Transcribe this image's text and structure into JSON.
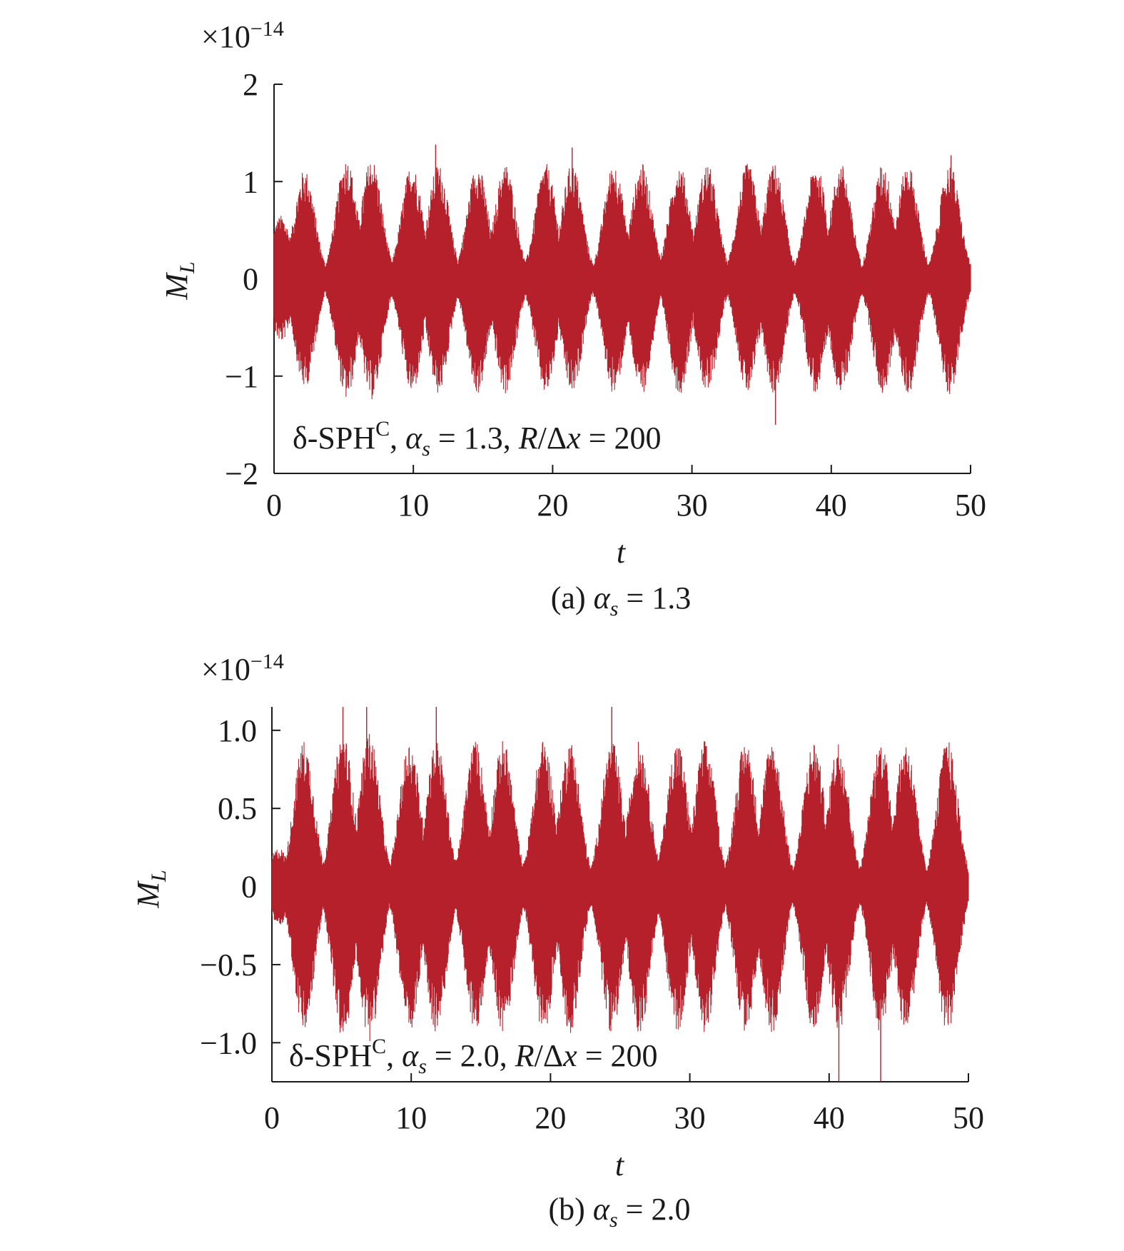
{
  "colors": {
    "series": "#b5202a",
    "axis": "#1a1a1a"
  },
  "chart_data": [
    {
      "type": "line",
      "caption": {
        "prefix": "(a) ",
        "symbol": "α",
        "sub": "s",
        "rest": " = 1.3"
      },
      "scale_note": {
        "base": "×10",
        "exp": "−14"
      },
      "xlabel": "t",
      "ylabel": {
        "main": "M",
        "sub": "L"
      },
      "xlim": [
        0,
        50
      ],
      "ylim": [
        -2,
        2
      ],
      "xticks": [
        0,
        10,
        20,
        30,
        40,
        50
      ],
      "xtick_labels": [
        "0",
        "10",
        "20",
        "30",
        "40",
        "50"
      ],
      "yticks": [
        -2,
        -1,
        0,
        1,
        2
      ],
      "ytick_labels": [
        "−2",
        "−1",
        "0",
        "1",
        "2"
      ],
      "annotation": {
        "text1": "δ-SPH",
        "sup": "C",
        "text2": ", ",
        "sym": "α",
        "sub": "s",
        "text3": " = 1.3, ",
        "r": "R",
        "text4": "/Δ",
        "x": "x",
        "text5": " = 200"
      },
      "grid": false,
      "series": [
        {
          "envelope_peaks_t": [
            0.5,
            2.2,
            5.2,
            7.0,
            9.9,
            11.8,
            14.6,
            16.6,
            19.5,
            21.4,
            24.4,
            26.4,
            29.1,
            31.1,
            34.0,
            35.9,
            38.9,
            40.7,
            43.7,
            45.5,
            48.5
          ],
          "envelope_peak_amp": [
            0.55,
            0.95,
            1.05,
            1.05,
            1.0,
            1.0,
            1.0,
            1.0,
            1.0,
            1.0,
            1.0,
            1.0,
            1.0,
            1.0,
            1.0,
            1.0,
            1.0,
            1.0,
            1.0,
            1.0,
            1.0
          ],
          "spike_t": [
            11.6,
            21.4,
            36.0,
            48.6
          ],
          "spike_y": [
            1.38,
            1.35,
            -1.5,
            1.27
          ],
          "amplitude_range": [
            -1.5,
            1.38
          ]
        }
      ]
    },
    {
      "type": "line",
      "caption": {
        "prefix": "(b) ",
        "symbol": "α",
        "sub": "s",
        "rest": " = 2.0"
      },
      "scale_note": {
        "base": "×10",
        "exp": "−14"
      },
      "xlabel": "t",
      "ylabel": {
        "main": "M",
        "sub": "L"
      },
      "xlim": [
        0,
        50
      ],
      "ylim": [
        -1.25,
        1.15
      ],
      "xticks": [
        0,
        10,
        20,
        30,
        40,
        50
      ],
      "xtick_labels": [
        "0",
        "10",
        "20",
        "30",
        "40",
        "50"
      ],
      "yticks": [
        -1.0,
        -0.5,
        0,
        0.5,
        1.0
      ],
      "ytick_labels": [
        "−1.0",
        "−0.5",
        "0",
        "0.5",
        "1.0"
      ],
      "annotation": {
        "text1": "δ-SPH",
        "sup": "C",
        "text2": ", ",
        "sym": "α",
        "sub": "s",
        "text3": " = 2.0, ",
        "r": "R",
        "text4": "/Δ",
        "x": "x",
        "text5": " = 200"
      },
      "grid": false,
      "series": [
        {
          "envelope_peaks_t": [
            0.5,
            2.3,
            5.1,
            7.0,
            9.9,
            11.8,
            14.6,
            16.6,
            19.5,
            21.4,
            24.4,
            26.4,
            29.1,
            31.1,
            34.0,
            35.9,
            38.9,
            40.7,
            43.7,
            45.5,
            48.5
          ],
          "envelope_peak_amp": [
            0.25,
            0.95,
            1.0,
            1.0,
            0.95,
            0.95,
            0.95,
            0.95,
            0.95,
            0.95,
            0.95,
            0.95,
            0.95,
            0.95,
            0.95,
            0.95,
            0.95,
            0.95,
            0.95,
            0.95,
            0.95
          ],
          "spike_t": [
            5.1,
            6.8,
            11.8,
            24.4,
            40.7,
            43.7
          ],
          "spike_y": [
            1.15,
            1.15,
            1.15,
            1.15,
            -1.25,
            -1.25
          ],
          "amplitude_range": [
            -1.25,
            1.15
          ]
        }
      ]
    }
  ]
}
